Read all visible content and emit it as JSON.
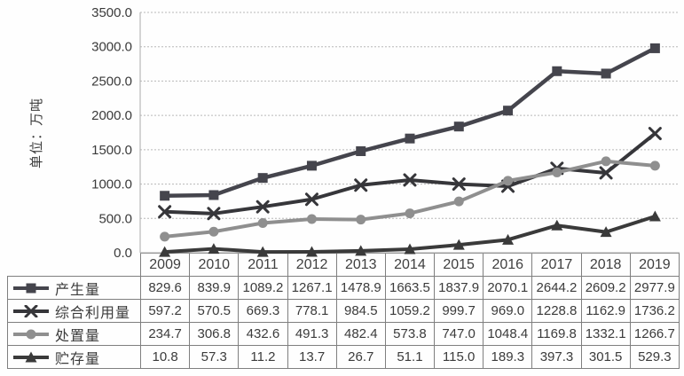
{
  "chart_data": {
    "type": "line",
    "title": "",
    "xlabel": "",
    "ylabel": "单位：万吨",
    "ylim": [
      0,
      3500
    ],
    "ytick_step": 500,
    "ytick_labels": [
      "0.0",
      "500.0",
      "1000.0",
      "1500.0",
      "2000.0",
      "2500.0",
      "3000.0",
      "3500.0"
    ],
    "grid": true,
    "legend_position": "data-table-left-column",
    "categories": [
      "2009",
      "2010",
      "2011",
      "2012",
      "2013",
      "2014",
      "2015",
      "2016",
      "2017",
      "2018",
      "2019"
    ],
    "series": [
      {
        "key": "production",
        "name": "产生量",
        "marker": "square",
        "color": "#45454d",
        "line_width": 4.5,
        "values": [
          829.6,
          839.9,
          1089.2,
          1267.1,
          1478.9,
          1663.5,
          1837.9,
          2070.1,
          2644.2,
          2609.2,
          2977.9
        ]
      },
      {
        "key": "comprehensive-utilization",
        "name": "综合利用量",
        "marker": "x",
        "color": "#36363a",
        "line_width": 4,
        "values": [
          597.2,
          570.5,
          669.3,
          778.1,
          984.5,
          1059.2,
          999.7,
          969.0,
          1228.8,
          1162.9,
          1736.2
        ]
      },
      {
        "key": "disposal",
        "name": "处置量",
        "marker": "circle",
        "color": "#8f8f8f",
        "line_width": 4,
        "values": [
          234.7,
          306.8,
          432.6,
          491.3,
          482.4,
          573.8,
          747.0,
          1048.4,
          1169.8,
          1332.1,
          1266.7
        ]
      },
      {
        "key": "storage",
        "name": "贮存量",
        "marker": "triangle",
        "color": "#3a3a3a",
        "line_width": 4,
        "values": [
          10.8,
          57.3,
          11.2,
          13.7,
          26.7,
          51.1,
          115.0,
          189.3,
          397.3,
          301.5,
          529.3
        ]
      }
    ]
  },
  "colors": {
    "background": "#fefefe",
    "grid": "#b8b8b8",
    "axis": "#aaaaaa",
    "table_border": "#7f7f7f",
    "text": "#3b3b3b"
  }
}
